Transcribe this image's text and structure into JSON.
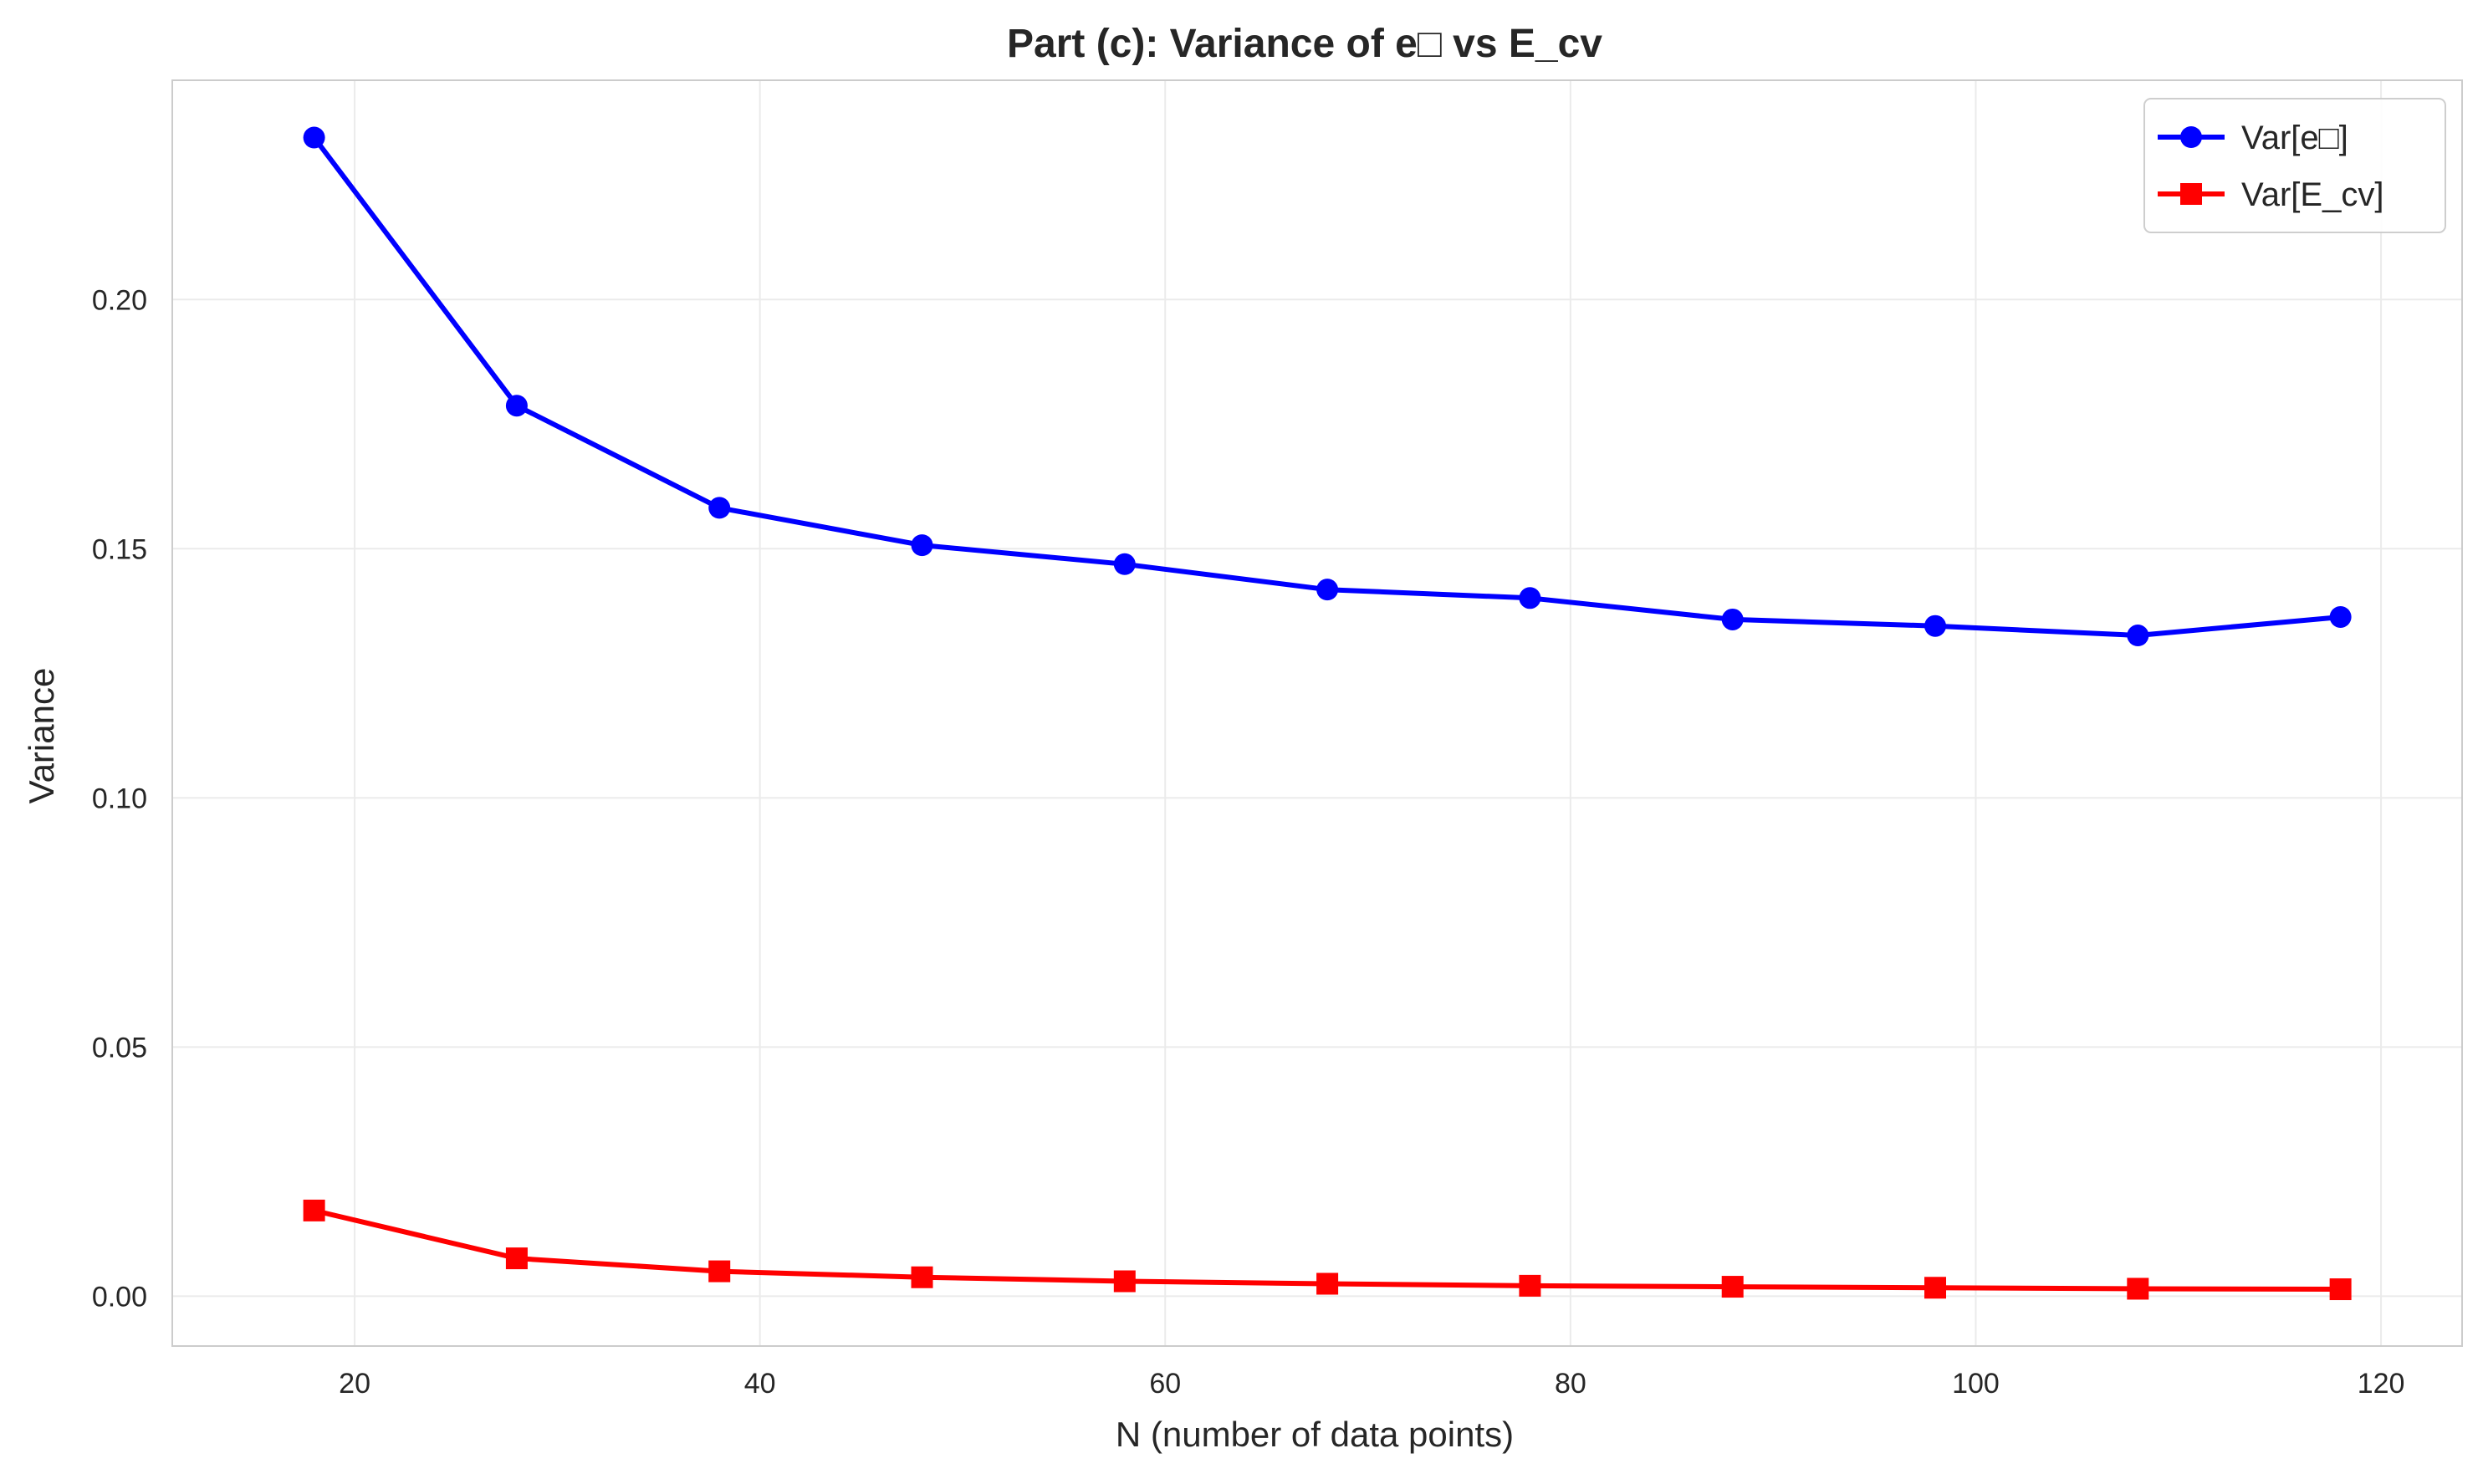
{
  "chart_data": {
    "type": "line",
    "title": "Part (c): Variance of e□ vs E_cv",
    "xlabel": "N (number of data points)",
    "ylabel": "Variance",
    "x": [
      18,
      28,
      38,
      48,
      58,
      68,
      78,
      88,
      98,
      108,
      118
    ],
    "xlim": [
      11,
      124
    ],
    "ylim": [
      -0.01,
      0.244
    ],
    "xticks": [
      20,
      40,
      60,
      80,
      100,
      120
    ],
    "yticks": [
      0.0,
      0.05,
      0.1,
      0.15,
      0.2
    ],
    "ytick_labels": [
      "0.00",
      "0.05",
      "0.10",
      "0.15",
      "0.20"
    ],
    "grid": true,
    "legend_position": "top-right",
    "series": [
      {
        "name": "Var[e□]",
        "color": "#0000ff",
        "marker": "circle",
        "values": [
          0.2325,
          0.1787,
          0.1582,
          0.1507,
          0.1469,
          0.1418,
          0.1401,
          0.1358,
          0.1345,
          0.1326,
          0.1363
        ]
      },
      {
        "name": "Var[E_cv]",
        "color": "#ff0000",
        "marker": "square",
        "values": [
          0.0172,
          0.0076,
          0.005,
          0.0038,
          0.003,
          0.0025,
          0.0021,
          0.0019,
          0.0017,
          0.0015,
          0.0014
        ]
      }
    ]
  }
}
